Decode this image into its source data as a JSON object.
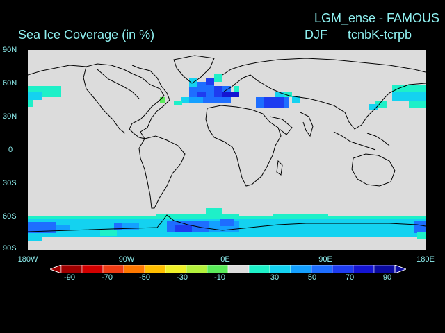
{
  "header": {
    "run_title": "LGM_ense - FAMOUS",
    "season": "DJF",
    "experiment": "tcnbK-tcrpb",
    "variable_title": "Sea Ice Coverage (in %)"
  },
  "map": {
    "projection": "plate carree",
    "land_color": "#dcdcdc",
    "background": "#000000",
    "lat_ticks": [
      "90N",
      "60N",
      "30N",
      "0",
      "30S",
      "60S",
      "90S"
    ],
    "lon_ticks": [
      "180W",
      "90W",
      "0E",
      "90E",
      "180E"
    ]
  },
  "colorbar": {
    "labels": [
      "-90",
      "-70",
      "-50",
      "-30",
      "-10",
      "30",
      "50",
      "70",
      "90"
    ],
    "colors": [
      "#a00000",
      "#d20000",
      "#f03c14",
      "#ff7800",
      "#ffbe00",
      "#f0f028",
      "#b4f03c",
      "#5aeb5a",
      "#dcdcdc",
      "#1ef0c8",
      "#14d2f0",
      "#14a0ff",
      "#1e6eff",
      "#1e3cf0",
      "#1414d2",
      "#0a0aa0"
    ]
  }
}
